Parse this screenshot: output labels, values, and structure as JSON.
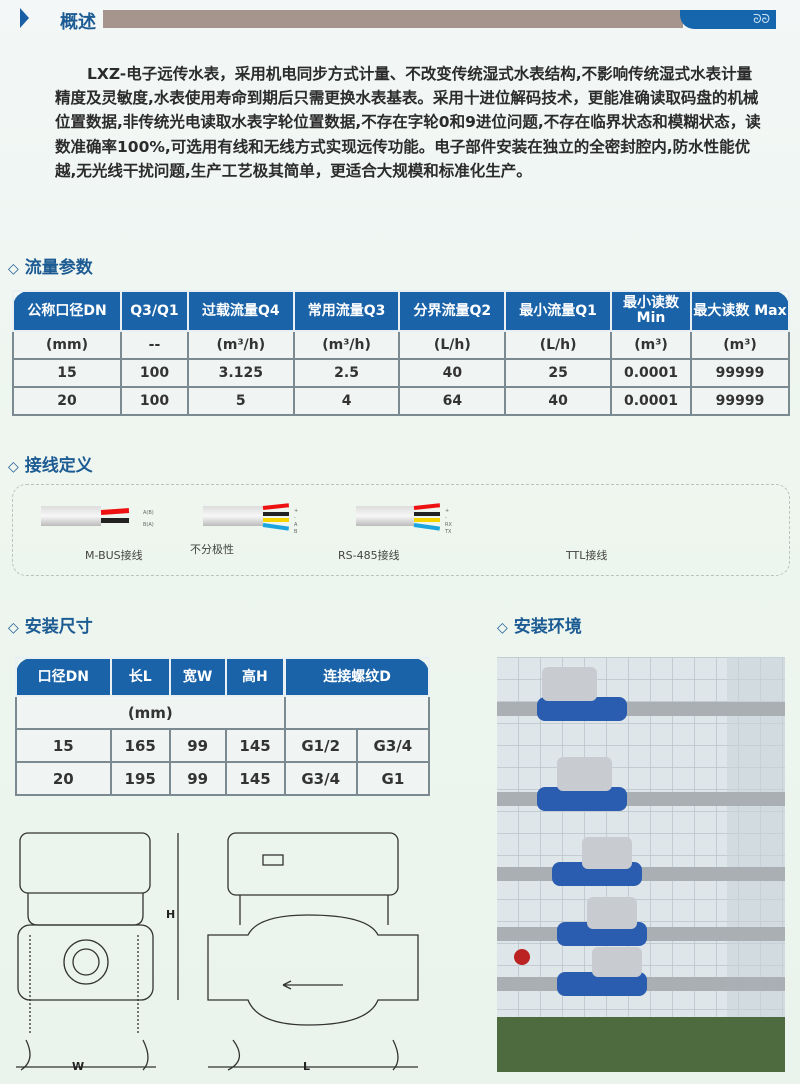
{
  "header": {
    "title": "概述",
    "ornament": "ᘐᘐ"
  },
  "overview": "LXZ-电子远传水表，采用机电同步方式计量、不改变传统湿式水表结构,不影响传统湿式水表计量精度及灵敏度,水表使用寿命到期后只需更换水表基表。采用十进位解码技术，更能准确读取码盘的机械位置数据,非传统光电读取水表字轮位置数据,不存在字轮0和9进位问题,不存在临界状态和模糊状态，读数准确率100%,可选用有线和无线方式实现远传功能。电子部件安装在独立的全密封腔内,防水性能优越,无光线干扰问题,生产工艺极其简单，更适合大规模和标准化生产。",
  "flow": {
    "title": "流量参数",
    "headers": [
      "公称口径DN",
      "Q3/Q1",
      "过载流量Q4",
      "常用流量Q3",
      "分界流量Q2",
      "最小流量Q1",
      "最小读数 Min",
      "最大读数 Max"
    ],
    "units": [
      "(mm)",
      "--",
      "(m³/h)",
      "(m³/h)",
      "(L/h)",
      "(L/h)",
      "(m³)",
      "(m³)"
    ],
    "rows": [
      [
        "15",
        "100",
        "3.125",
        "2.5",
        "40",
        "25",
        "0.0001",
        "99999"
      ],
      [
        "20",
        "100",
        "5",
        "4",
        "64",
        "40",
        "0.0001",
        "99999"
      ]
    ]
  },
  "wiring": {
    "title": "接线定义",
    "mbus": {
      "label": "M-BUS接线",
      "note": "不分极性",
      "wires": [
        "A(B)",
        "B(A)"
      ]
    },
    "rs485": {
      "label": "RS-485接线",
      "wires": [
        "+",
        "-",
        "A",
        "B"
      ]
    },
    "ttl": {
      "label": "TTL接线",
      "wires": [
        "+",
        "-",
        "RX",
        "TX"
      ]
    }
  },
  "install": {
    "title": "安装尺寸",
    "headers": [
      "口径DN",
      "长L",
      "宽W",
      "高H",
      "连接螺纹D"
    ],
    "unit": "(mm)",
    "rows": [
      [
        "15",
        "165",
        "99",
        "145",
        "G1/2",
        "G3/4"
      ],
      [
        "20",
        "195",
        "99",
        "145",
        "G3/4",
        "G1"
      ]
    ]
  },
  "environment": {
    "title": "安装环境"
  },
  "drawing": {
    "w": "W",
    "h": "H",
    "l": "L"
  },
  "colors": {
    "brand_blue": "#1a63a8",
    "header_gray": "#a6958c"
  }
}
